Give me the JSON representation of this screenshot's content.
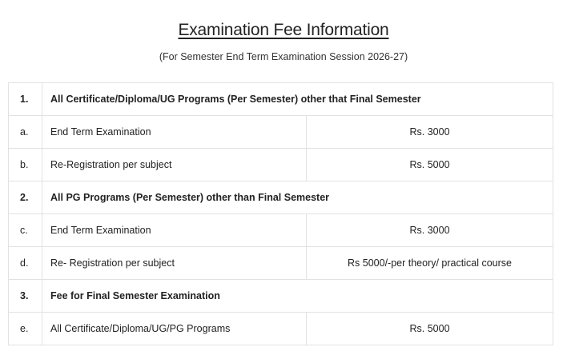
{
  "title": "Examination Fee Information",
  "subtitle": "(For Semester End Term Examination Session 2026-27)",
  "rows": [
    {
      "type": "head",
      "num": "1.",
      "label": "All Certificate/Diploma/UG Programs (Per Semester) other that Final Semester"
    },
    {
      "type": "item",
      "num": "a.",
      "label": "End Term Examination",
      "value": "Rs. 3000"
    },
    {
      "type": "item",
      "num": "b.",
      "label": "Re-Registration per subject",
      "value": "Rs. 5000"
    },
    {
      "type": "head",
      "num": "2.",
      "label": "All PG Programs (Per Semester) other than Final Semester"
    },
    {
      "type": "item",
      "num": "c.",
      "label": "End Term Examination",
      "value": "Rs. 3000"
    },
    {
      "type": "item",
      "num": "d.",
      "label": "Re- Registration per subject",
      "value": "Rs 5000/-per theory/ practical course"
    },
    {
      "type": "head",
      "num": "3.",
      "label": "Fee for Final Semester Examination"
    },
    {
      "type": "item",
      "num": "e.",
      "label": "All Certificate/Diploma/UG/PG Programs",
      "value": "Rs. 5000"
    }
  ]
}
